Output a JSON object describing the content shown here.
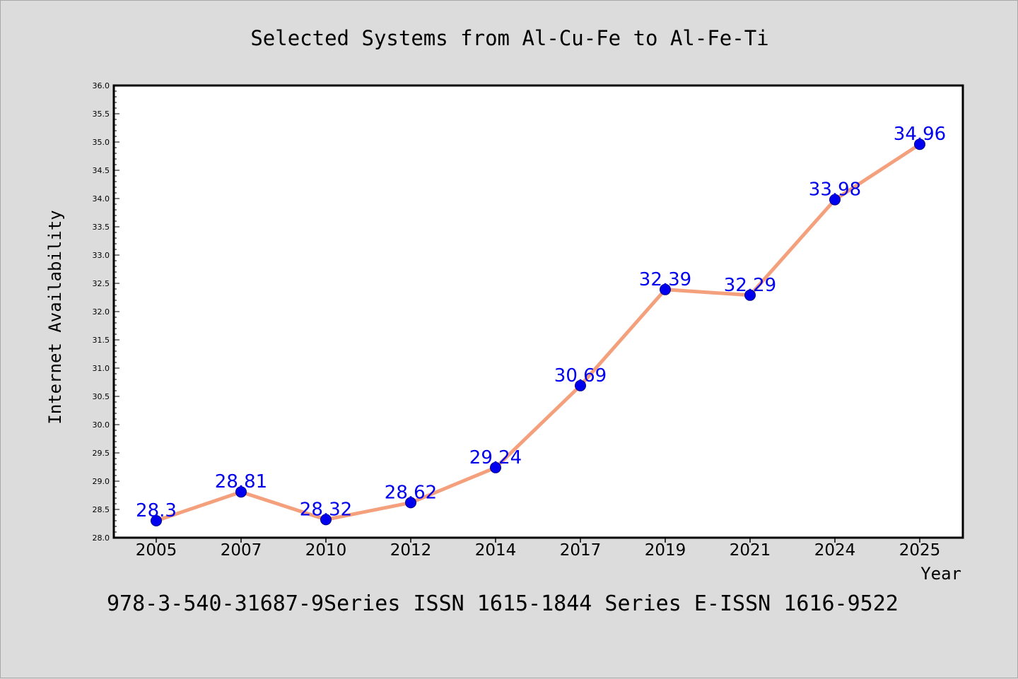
{
  "chart_data": {
    "type": "line",
    "title": "Selected Systems from Al-Cu-Fe to Al-Fe-Ti",
    "xlabel": "Year",
    "ylabel": "Internet Availability",
    "categories": [
      "2005",
      "2007",
      "2010",
      "2012",
      "2014",
      "2017",
      "2019",
      "2021",
      "2024",
      "2025"
    ],
    "series": [
      {
        "values": [
          28.3,
          28.81,
          28.32,
          28.62,
          29.24,
          30.69,
          32.39,
          32.29,
          33.98,
          34.96
        ],
        "data_labels": [
          "28.3",
          "28.81",
          "28.32",
          "28.62",
          "29.24",
          "30.69",
          "32.39",
          "32.29",
          "33.98",
          "34.96"
        ],
        "line_color": "#f4a07c",
        "marker_color": "#0000ee"
      }
    ],
    "ylim": [
      28.0,
      36.0
    ],
    "yticks": [
      "28.0",
      "28.5",
      "29.0",
      "29.5",
      "30.0",
      "30.5",
      "31.0",
      "31.5",
      "32.0",
      "32.5",
      "33.0",
      "33.5",
      "34.0",
      "34.5",
      "35.0",
      "35.5",
      "36.0"
    ],
    "grid": false,
    "legend": "none",
    "label_color": "#0000ee"
  },
  "footer_text": "978-3-540-31687-9Series ISSN 1615-1844 Series E-ISSN 1616-9522",
  "colors": {
    "page_background": "#dcdcdc",
    "plot_background": "#ffffff",
    "axis": "#000000"
  }
}
